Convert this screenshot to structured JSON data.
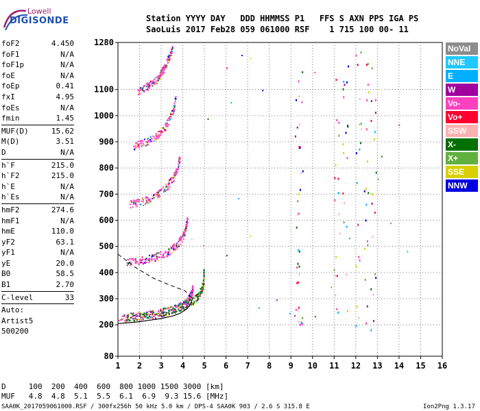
{
  "logo": {
    "line1": "Lowell",
    "line2": "DIGISONDE"
  },
  "header": {
    "row1": "Station YYYY DAY   DDD HHMMSS P1   FFS S AXN PPS IGA PS",
    "row2": "SaoLuis 2017 Feb28 059 061000 RSF    1 715 100 00- 11"
  },
  "params": [
    {
      "label": "foF2",
      "value": "4.450"
    },
    {
      "label": "foF1",
      "value": "N/A"
    },
    {
      "label": "foF1p",
      "value": "N/A"
    },
    {
      "label": "foE",
      "value": "N/A"
    },
    {
      "label": "foEp",
      "value": "0.41"
    },
    {
      "label": "fxI",
      "value": "4.95"
    },
    {
      "label": "foEs",
      "value": "N/A"
    },
    {
      "label": "fmin",
      "value": "1.45"
    },
    {
      "sep": true
    },
    {
      "label": "MUF(D)",
      "value": "15.62"
    },
    {
      "label": "M(D)",
      "value": "3.51"
    },
    {
      "label": "D",
      "value": "N/A"
    },
    {
      "sep": true
    },
    {
      "label": "h`F",
      "value": "215.0"
    },
    {
      "label": "h`F2",
      "value": "215.0"
    },
    {
      "label": "h`E",
      "value": "N/A"
    },
    {
      "label": "h`Es",
      "value": "N/A"
    },
    {
      "sep": true
    },
    {
      "label": "hmF2",
      "value": "274.6"
    },
    {
      "label": "hmF1",
      "value": "N/A"
    },
    {
      "label": "hmE",
      "value": "110.0"
    },
    {
      "label": "yF2",
      "value": "63.1"
    },
    {
      "label": "yF1",
      "value": "N/A"
    },
    {
      "label": "yE",
      "value": "20.0"
    },
    {
      "label": "B0",
      "value": "58.5"
    },
    {
      "label": "B1",
      "value": "2.70"
    },
    {
      "sep": true
    },
    {
      "label": "C-level",
      "value": "33"
    },
    {
      "sep": true
    },
    {
      "text": "Auto:"
    },
    {
      "text": "Artist5"
    },
    {
      "text": "500200"
    }
  ],
  "legend": [
    {
      "label": "NoVal",
      "color": "#8c8c8c"
    },
    {
      "label": "NNE",
      "color": "#20c8ff"
    },
    {
      "label": "E",
      "color": "#00b0ff"
    },
    {
      "label": "W",
      "color": "#a000a0"
    },
    {
      "label": "Vo-",
      "color": "#ff40c0"
    },
    {
      "label": "Vo+",
      "color": "#ff0030"
    },
    {
      "label": "SSW",
      "color": "#ffb0b0"
    },
    {
      "label": "X-",
      "color": "#007000"
    },
    {
      "label": "X+",
      "color": "#60b040"
    },
    {
      "label": "SSE",
      "color": "#d8d000"
    },
    {
      "label": "NNW",
      "color": "#0000e0"
    }
  ],
  "bottom": {
    "row1": "D     100  200  400  600  800 1000 1500 3000 [km]",
    "row2": "MUF   4.8  4.8  5.1  5.5  6.1  6.9  9.3 15.6 [MHz]"
  },
  "footer": {
    "left": "SAA0K_2017059061000.RSF / 300fx256h 50 kHz 5.0 km / DPS-4 SAA0K 903 / 2.6 S 315.8 E",
    "right": "Ion2Png 1.3.17"
  },
  "chart_data": {
    "type": "scatter",
    "xlabel": "",
    "ylabel": "",
    "xlim": [
      1,
      16
    ],
    "ylim": [
      80,
      1280
    ],
    "x_ticks": [
      1,
      2,
      3,
      4,
      5,
      6,
      7,
      8,
      9,
      10,
      11,
      12,
      13,
      14,
      15,
      16
    ],
    "y_ticks": [
      80,
      200,
      300,
      400,
      500,
      600,
      700,
      800,
      900,
      1000,
      1100,
      1280
    ],
    "profile_curve": [
      [
        1.0,
        205
      ],
      [
        1.5,
        208
      ],
      [
        2.0,
        212
      ],
      [
        2.5,
        218
      ],
      [
        3.0,
        224
      ],
      [
        3.5,
        233
      ],
      [
        3.9,
        245
      ],
      [
        4.2,
        262
      ],
      [
        4.35,
        278
      ],
      [
        4.45,
        300
      ]
    ],
    "dashed_profile": [
      [
        1.0,
        470
      ],
      [
        1.8,
        420
      ],
      [
        2.6,
        380
      ],
      [
        3.4,
        352
      ],
      [
        4.1,
        330
      ],
      [
        4.45,
        300
      ]
    ],
    "traces": [
      {
        "name": "O-trace h'F2",
        "color": "#ff40c0",
        "points": [
          [
            1.0,
            220
          ],
          [
            1.5,
            222
          ],
          [
            2.0,
            226
          ],
          [
            2.5,
            232
          ],
          [
            3.0,
            240
          ],
          [
            3.5,
            252
          ],
          [
            3.8,
            262
          ],
          [
            4.0,
            272
          ],
          [
            4.2,
            285
          ],
          [
            4.3,
            300
          ],
          [
            4.4,
            320
          ],
          [
            4.45,
            340
          ]
        ]
      },
      {
        "name": "X-trace h'F2",
        "color": "#007000",
        "points": [
          [
            1.3,
            225
          ],
          [
            1.8,
            228
          ],
          [
            2.3,
            234
          ],
          [
            2.8,
            240
          ],
          [
            3.3,
            250
          ],
          [
            3.8,
            262
          ],
          [
            4.2,
            276
          ],
          [
            4.5,
            290
          ],
          [
            4.7,
            310
          ],
          [
            4.85,
            330
          ],
          [
            4.95,
            360
          ],
          [
            4.95,
            400
          ]
        ]
      },
      {
        "name": "2-hop trace",
        "color": "#ff40c0",
        "points": [
          [
            1.4,
            435
          ],
          [
            1.8,
            438
          ],
          [
            2.2,
            444
          ],
          [
            2.6,
            452
          ],
          [
            3.0,
            462
          ],
          [
            3.4,
            480
          ],
          [
            3.7,
            500
          ],
          [
            3.95,
            525
          ],
          [
            4.1,
            560
          ],
          [
            4.2,
            600
          ]
        ]
      },
      {
        "name": "3-hop trace",
        "color": "#ff40c0",
        "points": [
          [
            1.5,
            655
          ],
          [
            1.9,
            662
          ],
          [
            2.3,
            672
          ],
          [
            2.7,
            686
          ],
          [
            3.0,
            705
          ],
          [
            3.3,
            730
          ],
          [
            3.55,
            760
          ],
          [
            3.75,
            800
          ],
          [
            3.85,
            840
          ]
        ]
      },
      {
        "name": "4-hop trace",
        "color": "#ff40c0",
        "points": [
          [
            1.7,
            880
          ],
          [
            2.0,
            888
          ],
          [
            2.4,
            900
          ],
          [
            2.8,
            918
          ],
          [
            3.1,
            945
          ],
          [
            3.35,
            980
          ],
          [
            3.55,
            1020
          ],
          [
            3.65,
            1060
          ]
        ]
      },
      {
        "name": "5-hop trace",
        "color": "#ff40c0",
        "points": [
          [
            1.9,
            1090
          ],
          [
            2.2,
            1100
          ],
          [
            2.5,
            1115
          ],
          [
            2.8,
            1135
          ],
          [
            3.0,
            1160
          ],
          [
            3.2,
            1190
          ],
          [
            3.35,
            1220
          ],
          [
            3.5,
            1250
          ]
        ]
      }
    ]
  }
}
